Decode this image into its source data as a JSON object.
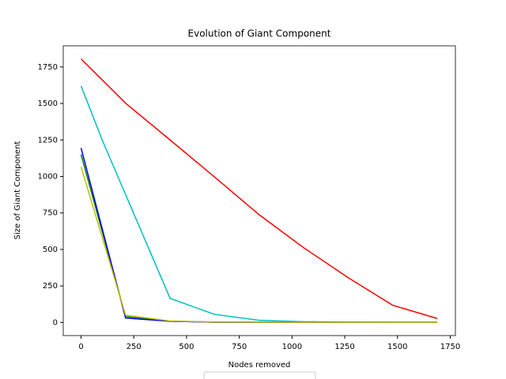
{
  "chart_data": {
    "type": "line",
    "title": "Evolution of Giant Component",
    "x_label": "Nodes removed",
    "y_label": "Size of Giant Component",
    "xlim": [
      -84.5,
      1774.5
    ],
    "ylim": [
      -90,
      1895
    ],
    "xticks": [
      0,
      250,
      500,
      750,
      1000,
      1250,
      1500,
      1750
    ],
    "yticks": [
      0,
      250,
      500,
      750,
      1000,
      1250,
      1500,
      1750
    ],
    "series": [
      {
        "color": "#ff0000",
        "x": [
          0,
          211,
          422,
          633,
          844,
          1055,
          1266,
          1477,
          1688
        ],
        "values": [
          1805,
          1502,
          1250,
          996,
          738,
          512,
          307,
          118,
          27
        ]
      },
      {
        "color": "#00bfbf",
        "x": [
          0,
          100,
          422,
          633,
          844,
          1055,
          1266,
          1477,
          1688
        ],
        "values": [
          1620,
          1250,
          165,
          55,
          15,
          5,
          2,
          1,
          1
        ]
      },
      {
        "color": "#008000",
        "x": [
          0,
          211,
          422,
          633,
          844,
          1055,
          1266,
          1477,
          1688
        ],
        "values": [
          1150,
          40,
          8,
          2,
          1,
          1,
          1,
          1,
          1
        ]
      },
      {
        "color": "#0000ff",
        "x": [
          0,
          211,
          422,
          633,
          844,
          1055,
          1266,
          1477,
          1688
        ],
        "values": [
          1195,
          30,
          8,
          2,
          1,
          1,
          1,
          1,
          1
        ]
      },
      {
        "color": "#bfbf00",
        "x": [
          0,
          211,
          422,
          633,
          844,
          1055,
          1266,
          1477,
          1688
        ],
        "values": [
          1065,
          50,
          10,
          3,
          2,
          1,
          1,
          1,
          1
        ]
      }
    ]
  }
}
